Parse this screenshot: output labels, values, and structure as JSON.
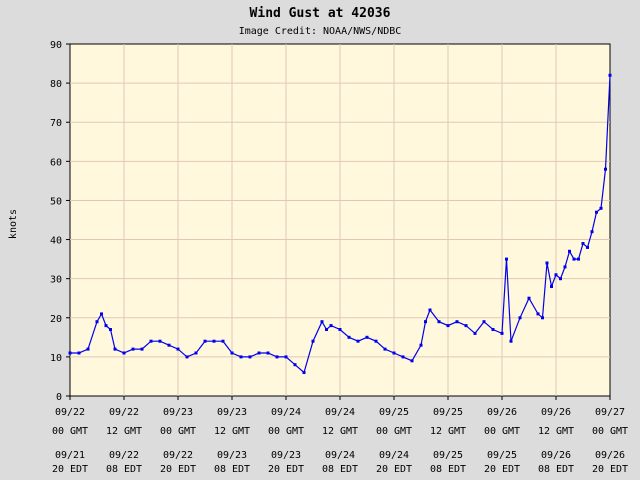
{
  "chart_data": {
    "type": "line",
    "title": "Wind Gust at 42036",
    "subtitle": "Image Credit: NOAA/NWS/NDBC",
    "ylabel": "knots",
    "xlabel": "",
    "ylim": [
      0,
      90
    ],
    "yticks": [
      0,
      10,
      20,
      30,
      40,
      50,
      60,
      70,
      80,
      90
    ],
    "xlim": [
      "09/22 00 GMT",
      "09/27 00 GMT"
    ],
    "grid": true,
    "x_ticks": [
      {
        "gmt_date": "09/22",
        "gmt_time": "00 GMT",
        "edt_date": "09/21",
        "edt_time": "20 EDT"
      },
      {
        "gmt_date": "09/22",
        "gmt_time": "12 GMT",
        "edt_date": "09/22",
        "edt_time": "08 EDT"
      },
      {
        "gmt_date": "09/23",
        "gmt_time": "00 GMT",
        "edt_date": "09/22",
        "edt_time": "20 EDT"
      },
      {
        "gmt_date": "09/23",
        "gmt_time": "12 GMT",
        "edt_date": "09/23",
        "edt_time": "08 EDT"
      },
      {
        "gmt_date": "09/24",
        "gmt_time": "00 GMT",
        "edt_date": "09/23",
        "edt_time": "20 EDT"
      },
      {
        "gmt_date": "09/24",
        "gmt_time": "12 GMT",
        "edt_date": "09/24",
        "edt_time": "08 EDT"
      },
      {
        "gmt_date": "09/25",
        "gmt_time": "00 GMT",
        "edt_date": "09/24",
        "edt_time": "20 EDT"
      },
      {
        "gmt_date": "09/25",
        "gmt_time": "12 GMT",
        "edt_date": "09/25",
        "edt_time": "08 EDT"
      },
      {
        "gmt_date": "09/26",
        "gmt_time": "00 GMT",
        "edt_date": "09/25",
        "edt_time": "20 EDT"
      },
      {
        "gmt_date": "09/26",
        "gmt_time": "12 GMT",
        "edt_date": "09/26",
        "edt_time": "08 EDT"
      },
      {
        "gmt_date": "09/27",
        "gmt_time": "00 GMT",
        "edt_date": "09/26",
        "edt_time": "20 EDT"
      }
    ],
    "colors": {
      "background": "#dcdcdc",
      "plot_bg": "#fff8dc",
      "grid": "#e2c6b8",
      "series": "#0000ee"
    },
    "series": [
      {
        "name": "",
        "x": [
          "09/22 00:00",
          "09/22 02:00",
          "09/22 04:00",
          "09/22 06:00",
          "09/22 07:00",
          "09/22 08:00",
          "09/22 09:00",
          "09/22 10:00",
          "09/22 12:00",
          "09/22 14:00",
          "09/22 16:00",
          "09/22 18:00",
          "09/22 20:00",
          "09/22 22:00",
          "09/23 00:00",
          "09/23 02:00",
          "09/23 04:00",
          "09/23 06:00",
          "09/23 08:00",
          "09/23 10:00",
          "09/23 12:00",
          "09/23 14:00",
          "09/23 16:00",
          "09/23 18:00",
          "09/23 20:00",
          "09/23 22:00",
          "09/24 00:00",
          "09/24 02:00",
          "09/24 04:00",
          "09/24 06:00",
          "09/24 08:00",
          "09/24 09:00",
          "09/24 10:00",
          "09/24 12:00",
          "09/24 14:00",
          "09/24 16:00",
          "09/24 18:00",
          "09/24 20:00",
          "09/24 22:00",
          "09/25 00:00",
          "09/25 02:00",
          "09/25 04:00",
          "09/25 06:00",
          "09/25 07:00",
          "09/25 08:00",
          "09/25 10:00",
          "09/25 12:00",
          "09/25 14:00",
          "09/25 16:00",
          "09/25 18:00",
          "09/25 20:00",
          "09/25 22:00",
          "09/26 00:00",
          "09/26 01:00",
          "09/26 02:00",
          "09/26 04:00",
          "09/26 06:00",
          "09/26 08:00",
          "09/26 09:00",
          "09/26 10:00",
          "09/26 11:00",
          "09/26 12:00",
          "09/26 13:00",
          "09/26 14:00",
          "09/26 15:00",
          "09/26 16:00",
          "09/26 17:00",
          "09/26 18:00",
          "09/26 19:00",
          "09/26 20:00",
          "09/26 21:00",
          "09/26 22:00",
          "09/26 23:00",
          "09/27 00:00"
        ],
        "values": [
          11,
          11,
          12,
          19,
          21,
          18,
          17,
          12,
          11,
          12,
          12,
          14,
          14,
          13,
          12,
          10,
          11,
          14,
          14,
          14,
          11,
          10,
          10,
          11,
          11,
          10,
          10,
          8,
          6,
          14,
          19,
          17,
          18,
          17,
          15,
          14,
          15,
          14,
          12,
          11,
          10,
          9,
          13,
          19,
          22,
          19,
          18,
          19,
          18,
          16,
          19,
          17,
          16,
          35,
          14,
          20,
          25,
          21,
          20,
          34,
          28,
          31,
          30,
          33,
          37,
          35,
          35,
          39,
          38,
          42,
          47,
          48,
          58,
          82
        ]
      }
    ]
  }
}
